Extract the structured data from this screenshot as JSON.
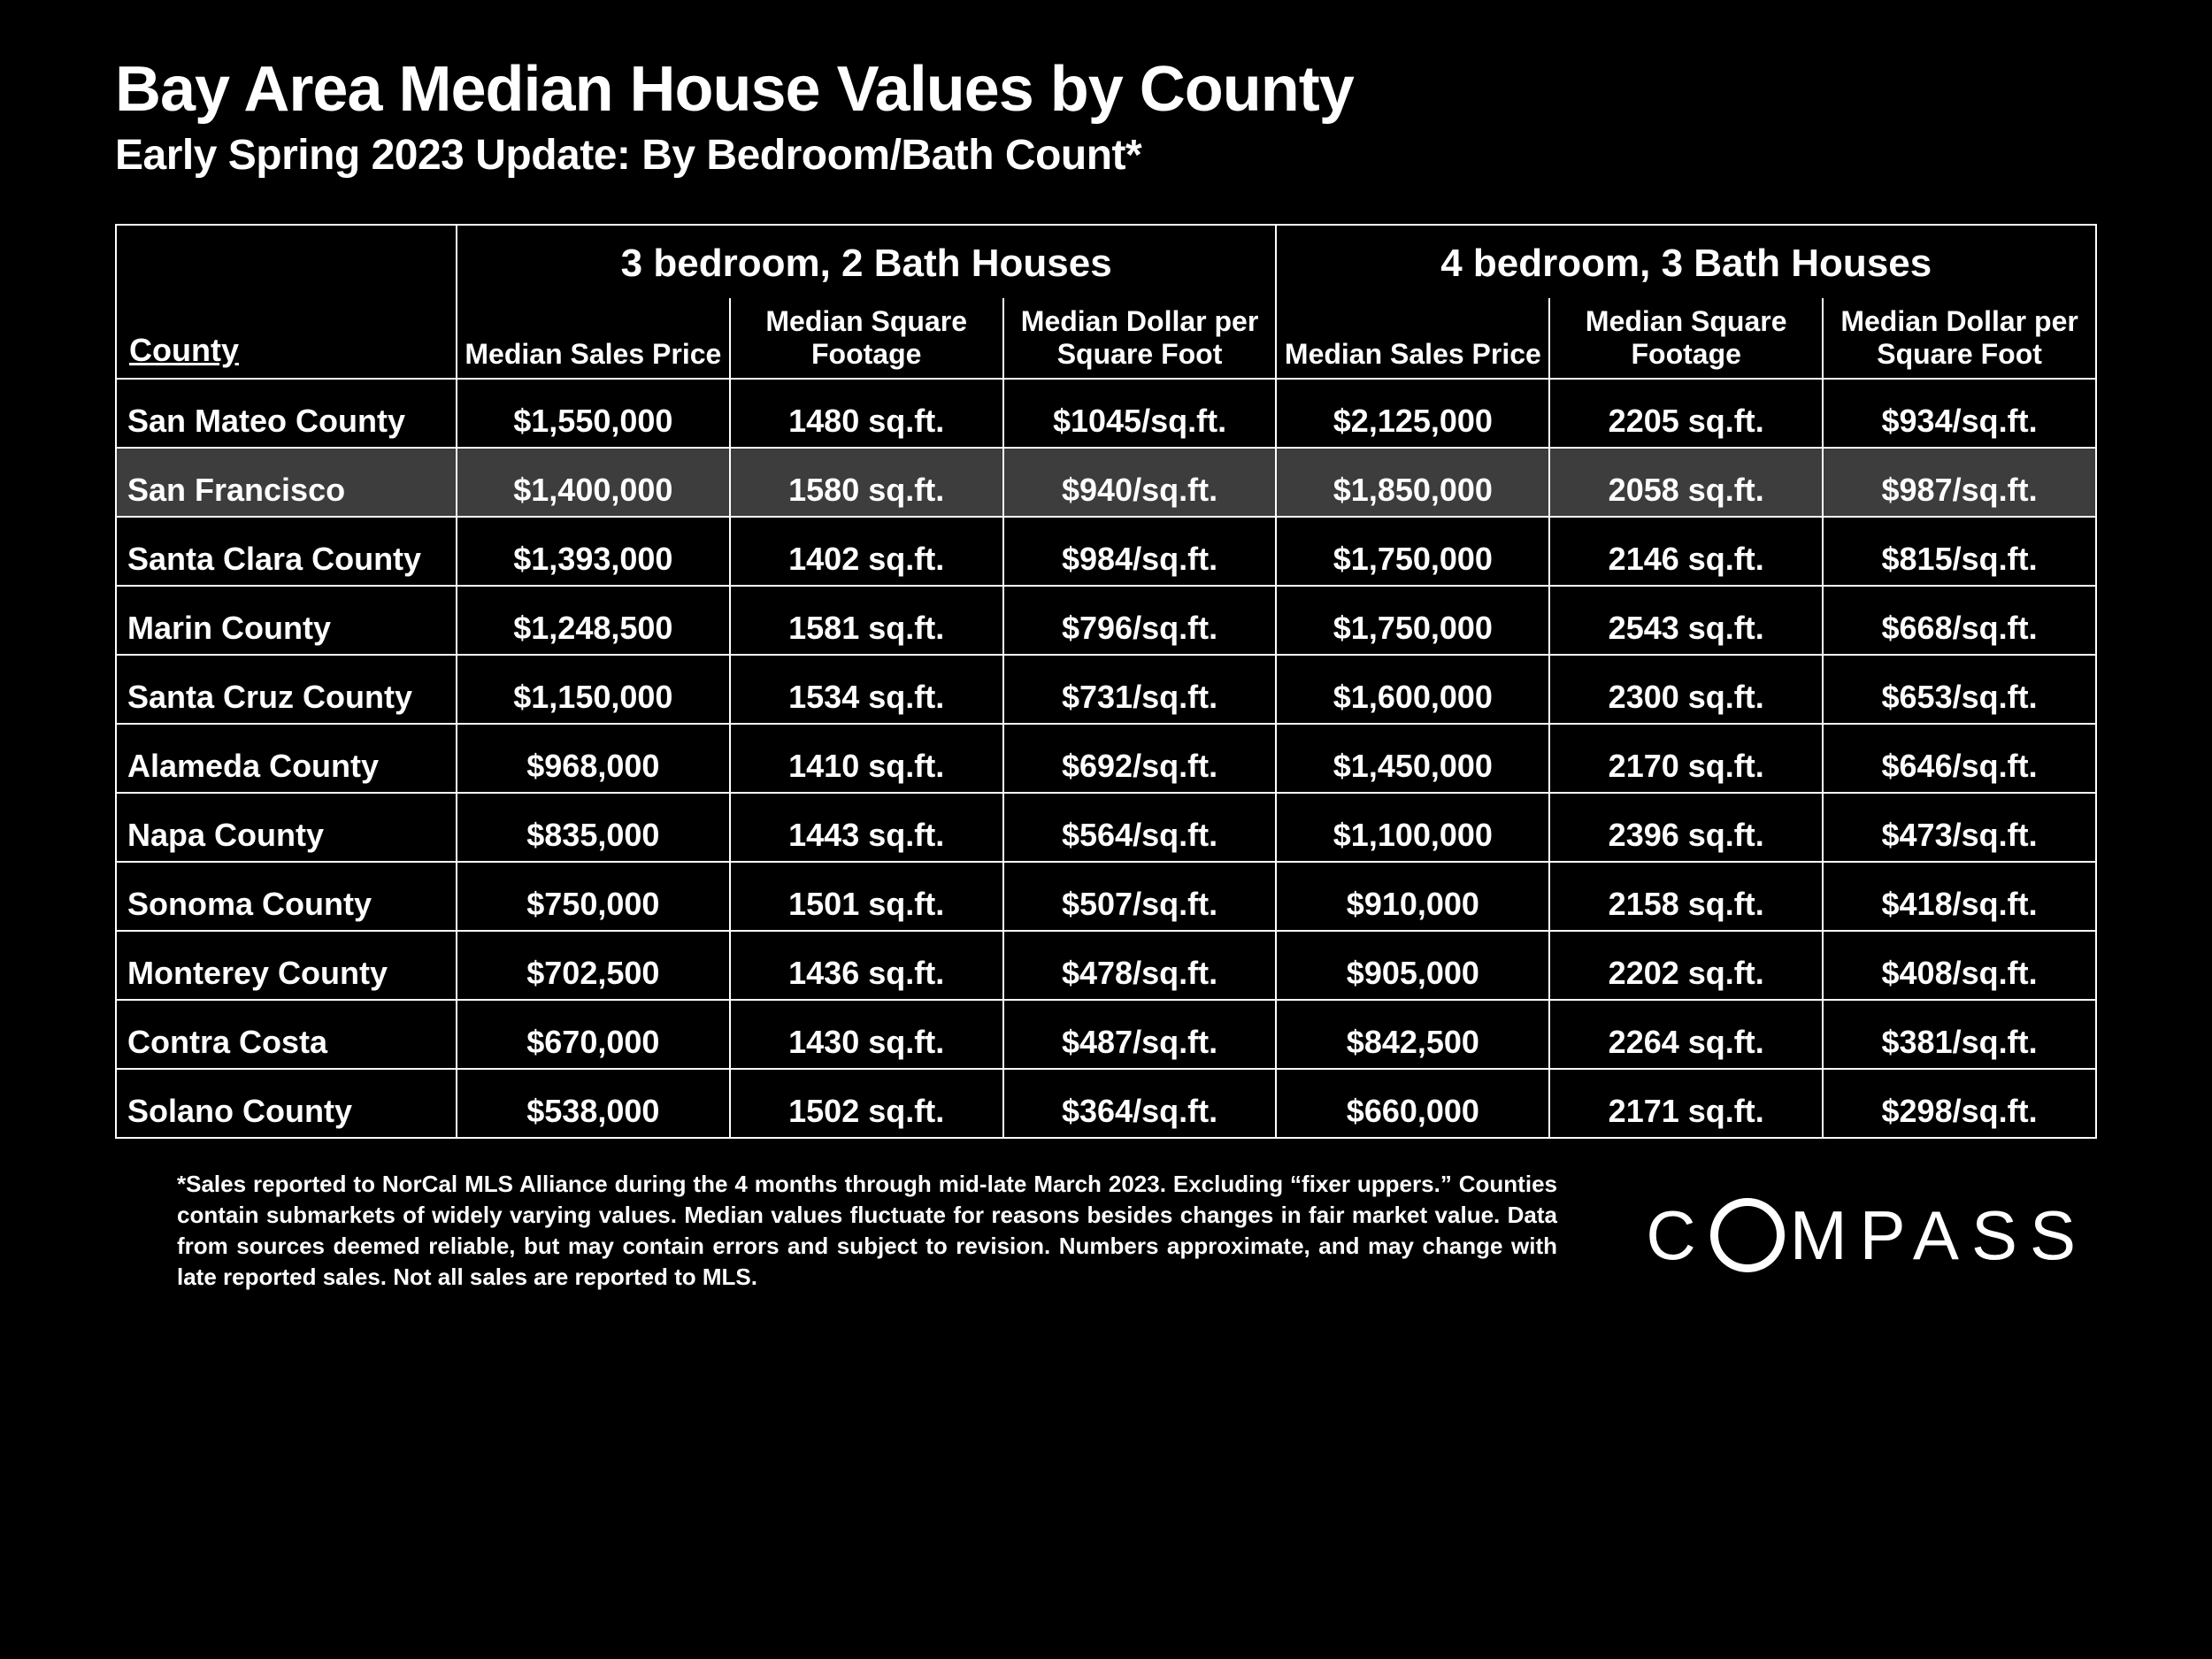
{
  "title": "Bay Area Median House Values by County",
  "subtitle": "Early Spring 2023 Update:  By Bedroom/Bath Count*",
  "colors": {
    "background": "#000000",
    "text": "#ffffff",
    "border": "#ffffff",
    "highlight_row_bg": "#3d3d3d"
  },
  "typography": {
    "title_fontsize_pt": 54,
    "subtitle_fontsize_pt": 36,
    "header_fontsize_pt": 33,
    "subheader_fontsize_pt": 24,
    "cell_fontsize_pt": 27,
    "footnote_fontsize_pt": 20,
    "logo_fontsize_pt": 58,
    "font_family": "Segoe UI / Helvetica Neue / Arial",
    "font_weight": 700
  },
  "table": {
    "type": "table",
    "county_header": "County",
    "group_headers": [
      "3 bedroom, 2 Bath Houses",
      "4 bedroom, 3 Bath Houses"
    ],
    "sub_headers": [
      "Median Sales Price",
      "Median Square Footage",
      "Median Dollar per Square Foot",
      "Median Sales Price",
      "Median Square Footage",
      "Median Dollar per Square Foot"
    ],
    "column_widths_pct": [
      17.2,
      13.8,
      13.8,
      13.8,
      13.8,
      13.8,
      13.8
    ],
    "highlight_row_index": 1,
    "rows": [
      {
        "county": "San Mateo County",
        "cells": [
          "$1,550,000",
          "1480 sq.ft.",
          "$1045/sq.ft.",
          "$2,125,000",
          "2205 sq.ft.",
          "$934/sq.ft."
        ]
      },
      {
        "county": "San Francisco",
        "cells": [
          "$1,400,000",
          "1580 sq.ft.",
          "$940/sq.ft.",
          "$1,850,000",
          "2058 sq.ft.",
          "$987/sq.ft."
        ]
      },
      {
        "county": "Santa Clara County",
        "cells": [
          "$1,393,000",
          "1402 sq.ft.",
          "$984/sq.ft.",
          "$1,750,000",
          "2146 sq.ft.",
          "$815/sq.ft."
        ]
      },
      {
        "county": "Marin County",
        "cells": [
          "$1,248,500",
          "1581 sq.ft.",
          "$796/sq.ft.",
          "$1,750,000",
          "2543 sq.ft.",
          "$668/sq.ft."
        ]
      },
      {
        "county": "Santa Cruz County",
        "cells": [
          "$1,150,000",
          "1534 sq.ft.",
          "$731/sq.ft.",
          "$1,600,000",
          "2300 sq.ft.",
          "$653/sq.ft."
        ]
      },
      {
        "county": "Alameda County",
        "cells": [
          "$968,000",
          "1410 sq.ft.",
          "$692/sq.ft.",
          "$1,450,000",
          "2170 sq.ft.",
          "$646/sq.ft."
        ]
      },
      {
        "county": "Napa County",
        "cells": [
          "$835,000",
          "1443 sq.ft.",
          "$564/sq.ft.",
          "$1,100,000",
          "2396 sq.ft.",
          "$473/sq.ft."
        ]
      },
      {
        "county": "Sonoma County",
        "cells": [
          "$750,000",
          "1501 sq.ft.",
          "$507/sq.ft.",
          "$910,000",
          "2158 sq.ft.",
          "$418/sq.ft."
        ]
      },
      {
        "county": "Monterey County",
        "cells": [
          "$702,500",
          "1436 sq.ft.",
          "$478/sq.ft.",
          "$905,000",
          "2202 sq.ft.",
          "$408/sq.ft."
        ]
      },
      {
        "county": "Contra Costa",
        "cells": [
          "$670,000",
          "1430 sq.ft.",
          "$487/sq.ft.",
          "$842,500",
          "2264 sq.ft.",
          "$381/sq.ft."
        ]
      },
      {
        "county": "Solano County",
        "cells": [
          "$538,000",
          "1502 sq.ft.",
          "$364/sq.ft.",
          "$660,000",
          "2171 sq.ft.",
          "$298/sq.ft."
        ]
      }
    ]
  },
  "footnote": "*Sales reported to NorCal MLS Alliance during the 4 months through mid-late March 2023. Excluding “fixer uppers.” Counties contain submarkets of widely varying values. Median values fluctuate for reasons besides changes in fair market value. Data from sources deemed reliable, but may contain errors and subject to revision.  Numbers approximate, and may change with late reported sales. Not all sales are reported to MLS.",
  "logo": {
    "prefix": "C",
    "suffix": "MPASS",
    "full": "COMPASS"
  }
}
